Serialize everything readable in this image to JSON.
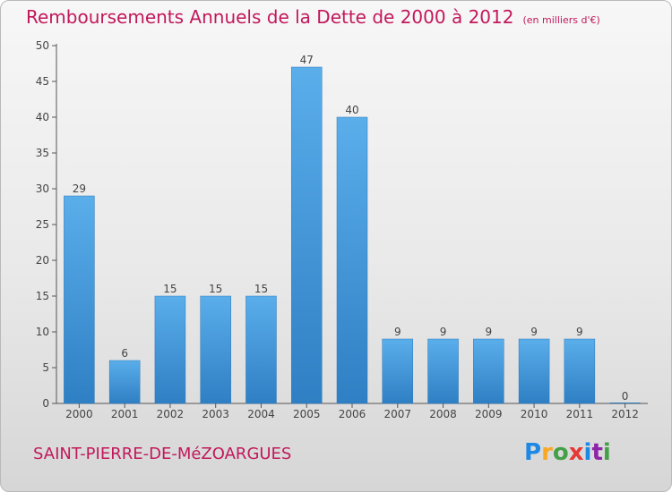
{
  "chart_data": {
    "type": "bar",
    "title": "Remboursements Annuels de la Dette de 2000 à 2012",
    "unit_note": "(en milliers d'€)",
    "categories": [
      "2000",
      "2001",
      "2002",
      "2003",
      "2004",
      "2005",
      "2006",
      "2007",
      "2008",
      "2009",
      "2010",
      "2011",
      "2012"
    ],
    "values": [
      29,
      6,
      15,
      15,
      15,
      47,
      40,
      9,
      9,
      9,
      9,
      9,
      0
    ],
    "ylim": [
      0,
      50
    ],
    "yticks": [
      0,
      5,
      10,
      15,
      20,
      25,
      30,
      35,
      40,
      45,
      50
    ],
    "xlabel": "",
    "ylabel": "",
    "grid": false,
    "bar_color": "#4a9ee0"
  },
  "footer": {
    "commune": "SAINT-PIERRE-DE-MéZOARGUES",
    "brand": "Proxiti"
  },
  "colors": {
    "title": "#c2185b",
    "bar": "#4a9ee0",
    "axis": "#444444"
  }
}
